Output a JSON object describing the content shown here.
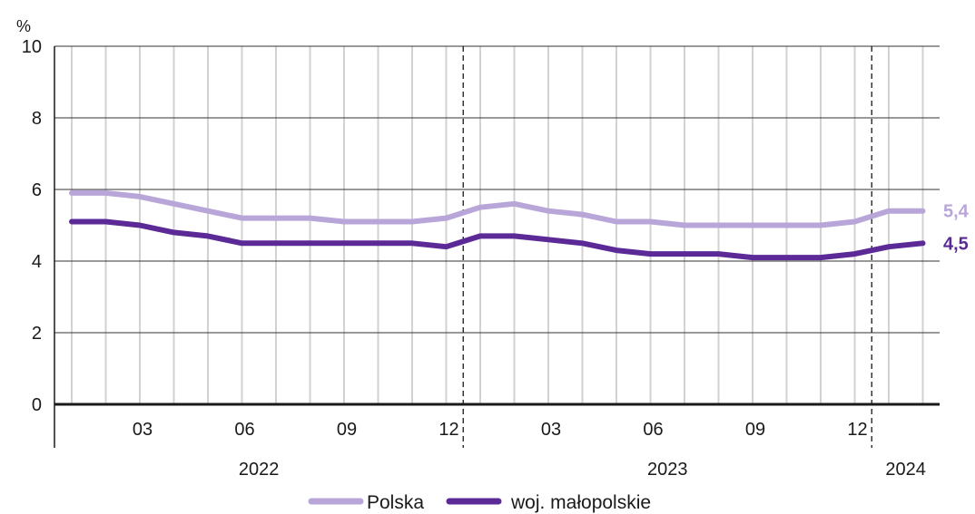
{
  "chart_data": {
    "type": "line",
    "unit": "%",
    "ylim": [
      0,
      10
    ],
    "yticks": [
      0,
      2,
      4,
      6,
      8,
      10
    ],
    "x": [
      "2022-01",
      "2022-02",
      "2022-03",
      "2022-04",
      "2022-05",
      "2022-06",
      "2022-07",
      "2022-08",
      "2022-09",
      "2022-10",
      "2022-11",
      "2022-12",
      "2023-01",
      "2023-02",
      "2023-03",
      "2023-04",
      "2023-05",
      "2023-06",
      "2023-07",
      "2023-08",
      "2023-09",
      "2023-10",
      "2023-11",
      "2023-12",
      "2024-01",
      "2024-02"
    ],
    "x_tick_labels": [
      {
        "month": "2022-03",
        "label": "03"
      },
      {
        "month": "2022-06",
        "label": "06"
      },
      {
        "month": "2022-09",
        "label": "09"
      },
      {
        "month": "2022-12",
        "label": "12"
      },
      {
        "month": "2023-03",
        "label": "03"
      },
      {
        "month": "2023-06",
        "label": "06"
      },
      {
        "month": "2023-09",
        "label": "09"
      },
      {
        "month": "2023-12",
        "label": "12"
      }
    ],
    "years": [
      "2022",
      "2023",
      "2024"
    ],
    "grid": true,
    "series": [
      {
        "name": "Polska",
        "color": "#b8a6d9",
        "values": [
          5.9,
          5.9,
          5.8,
          5.6,
          5.4,
          5.2,
          5.2,
          5.2,
          5.1,
          5.1,
          5.1,
          5.2,
          5.5,
          5.6,
          5.4,
          5.3,
          5.1,
          5.1,
          5.0,
          5.0,
          5.0,
          5.0,
          5.0,
          5.1,
          5.4,
          5.4
        ],
        "end_label": "5,4"
      },
      {
        "name": "woj. małopolskie",
        "color": "#5b2a96",
        "values": [
          5.1,
          5.1,
          5.0,
          4.8,
          4.7,
          4.5,
          4.5,
          4.5,
          4.5,
          4.5,
          4.5,
          4.4,
          4.7,
          4.7,
          4.6,
          4.5,
          4.3,
          4.2,
          4.2,
          4.2,
          4.1,
          4.1,
          4.1,
          4.2,
          4.4,
          4.5
        ],
        "end_label": "4,5"
      }
    ]
  }
}
